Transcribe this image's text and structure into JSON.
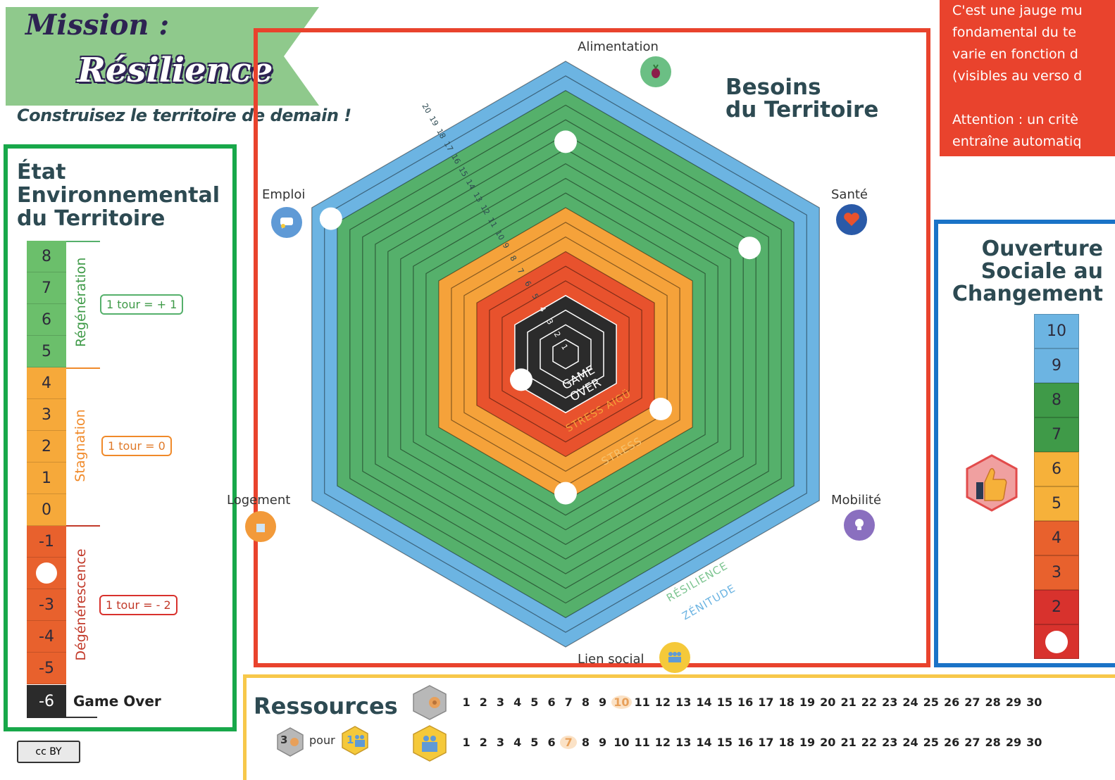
{
  "header": {
    "title_line1": "Mission :",
    "title_line2": "Résilience",
    "subtitle": "Construisez le territoire de demain !"
  },
  "note": {
    "lines": [
      "C'est une jauge mu",
      "fondamental du te",
      " varie en fonction d",
      "(visibles au verso d",
      "",
      "Attention : un critè",
      "entraîne automatiq"
    ]
  },
  "environment": {
    "title_line1": "État",
    "title_line2": "Environnemental",
    "title_line3": "du Territoire",
    "cells": [
      {
        "label": "8",
        "zone": "regen"
      },
      {
        "label": "7",
        "zone": "regen"
      },
      {
        "label": "6",
        "zone": "regen"
      },
      {
        "label": "5",
        "zone": "regen"
      },
      {
        "label": "4",
        "zone": "stag"
      },
      {
        "label": "3",
        "zone": "stag"
      },
      {
        "label": "2",
        "zone": "stag"
      },
      {
        "label": "1",
        "zone": "stag"
      },
      {
        "label": "0",
        "zone": "stag"
      },
      {
        "label": "-1",
        "zone": "degen"
      },
      {
        "label": "",
        "zone": "degen",
        "token": true
      },
      {
        "label": "-3",
        "zone": "degen"
      },
      {
        "label": "-4",
        "zone": "degen"
      },
      {
        "label": "-5",
        "zone": "degen"
      }
    ],
    "zones": {
      "regen": {
        "label": "Régénération",
        "rule": "1 tour = + 1"
      },
      "stag": {
        "label": "Stagnation",
        "rule": "1 tour = 0"
      },
      "degen": {
        "label": "Dégénérescence",
        "rule": "1 tour = - 2"
      }
    },
    "gameover_value": "-6",
    "gameover_label": "Game Over",
    "token_level": -2
  },
  "needs": {
    "title_line1": "Besoins",
    "title_line2": "du Territoire",
    "axes": [
      {
        "key": "alimentation",
        "label": "Alimentation",
        "icon": "beet-icon",
        "color": "#6bbf84",
        "level": 15
      },
      {
        "key": "sante",
        "label": "Santé",
        "icon": "heart-icon",
        "color": "#2a5aa8",
        "level": 15
      },
      {
        "key": "mobilite",
        "label": "Mobilité",
        "icon": "bulb-icon",
        "color": "#8a6fbf",
        "level": 8
      },
      {
        "key": "lien_social",
        "label": "Lien social",
        "icon": "people-icon",
        "color": "#f5c93a",
        "level": 10
      },
      {
        "key": "logement",
        "label": "Logement",
        "icon": "house-icon",
        "color": "#f29a3a",
        "level": 4
      },
      {
        "key": "emploi",
        "label": "Emploi",
        "icon": "chat-icon",
        "color": "#5f9ad6",
        "level": 19
      }
    ],
    "center_label_1": "GAME",
    "center_label_2": "OVER",
    "band_labels": [
      "STRESS AIGÜ",
      "STRESS",
      "RÉSILIENCE",
      "ZÉNITUDE"
    ],
    "ring_numbers": [
      "20",
      "19",
      "18",
      "17",
      "16",
      "15",
      "14",
      "13",
      "12",
      "11",
      "10",
      "9",
      "8",
      "7",
      "6",
      "5",
      "4",
      "3",
      "2",
      "1"
    ],
    "colors": {
      "zenith": "#6cb4e2",
      "resilience": "#55b06b",
      "stress": "#f5a23a",
      "acute": "#e8522d",
      "gameover": "#2b2b2b"
    }
  },
  "social": {
    "title_line1": "Ouverture",
    "title_line2": "Sociale au",
    "title_line3": "Changement",
    "cells": [
      {
        "label": "10",
        "color": "#6cb4e2"
      },
      {
        "label": "9",
        "color": "#6cb4e2"
      },
      {
        "label": "8",
        "color": "#3f9a48"
      },
      {
        "label": "7",
        "color": "#3f9a48"
      },
      {
        "label": "6",
        "color": "#f6b13a"
      },
      {
        "label": "5",
        "color": "#f6b13a"
      },
      {
        "label": "4",
        "color": "#e8612d"
      },
      {
        "label": "3",
        "color": "#e8612d"
      },
      {
        "label": "2",
        "color": "#d8322d"
      },
      {
        "label": "",
        "color": "#d8322d",
        "token": true
      }
    ],
    "token_level": 1,
    "icon": "thumbs-up-icon"
  },
  "resources": {
    "title": "Ressources",
    "exchange_left": "3",
    "exchange_word": "pour",
    "exchange_right": "1",
    "rows": [
      {
        "icon": "wood-icon",
        "selected": 10,
        "numbers": [
          "1",
          "2",
          "3",
          "4",
          "5",
          "6",
          "7",
          "8",
          "9",
          "10",
          "11",
          "12",
          "13",
          "14",
          "15",
          "16",
          "17",
          "18",
          "19",
          "20",
          "21",
          "22",
          "23",
          "24",
          "25",
          "26",
          "27",
          "28",
          "29",
          "30"
        ]
      },
      {
        "icon": "people-icon",
        "selected": 7,
        "numbers": [
          "1",
          "2",
          "3",
          "4",
          "5",
          "6",
          "7",
          "8",
          "9",
          "10",
          "11",
          "12",
          "13",
          "14",
          "15",
          "16",
          "17",
          "18",
          "19",
          "20",
          "21",
          "22",
          "23",
          "24",
          "25",
          "26",
          "27",
          "28",
          "29",
          "30"
        ]
      }
    ]
  },
  "license": "cc BY"
}
